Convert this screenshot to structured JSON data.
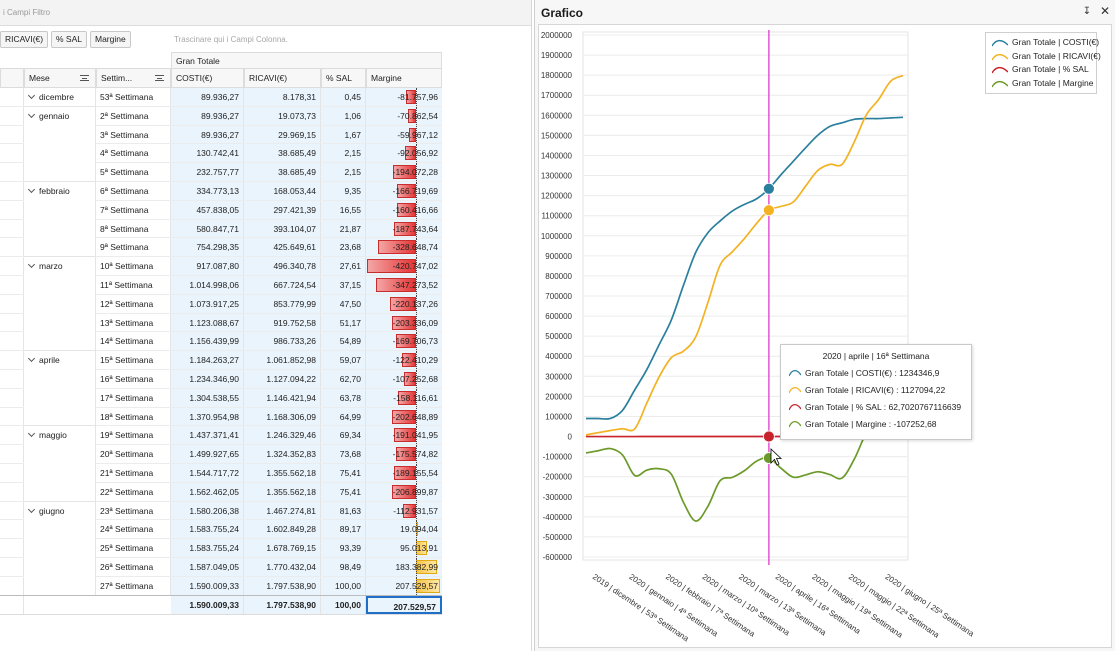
{
  "filter_area": {
    "placeholder": "i Campi Filtro"
  },
  "data_fields": [
    "RICAVI(€)",
    "% SAL",
    "Margine"
  ],
  "column_drop_text": "Trascinare qui i Campi Colonna.",
  "grand_total_header": "Gran Totale",
  "row_headers": {
    "mese": "Mese",
    "settimana": "Settim..."
  },
  "column_headers": [
    "COSTI(€)",
    "RICAVI(€)",
    "% SAL",
    "Margine"
  ],
  "months": [
    {
      "name": "dicembre",
      "rows": 1
    },
    {
      "name": "gennaio",
      "rows": 4
    },
    {
      "name": "febbraio",
      "rows": 4
    },
    {
      "name": "marzo",
      "rows": 5
    },
    {
      "name": "aprile",
      "rows": 4
    },
    {
      "name": "maggio",
      "rows": 4
    },
    {
      "name": "giugno",
      "rows": 5
    }
  ],
  "rows": [
    {
      "week": "53ª Settimana",
      "costi": "89.936,27",
      "ricavi": "8.178,31",
      "sal": "0,45",
      "margine": "-81.757,96",
      "m": -81757.96
    },
    {
      "week": "2ª Settimana",
      "costi": "89.936,27",
      "ricavi": "19.073,73",
      "sal": "1,06",
      "margine": "-70.862,54",
      "m": -70862.54
    },
    {
      "week": "3ª Settimana",
      "costi": "89.936,27",
      "ricavi": "29.969,15",
      "sal": "1,67",
      "margine": "-59.967,12",
      "m": -59967.12
    },
    {
      "week": "4ª Settimana",
      "costi": "130.742,41",
      "ricavi": "38.685,49",
      "sal": "2,15",
      "margine": "-92.056,92",
      "m": -92056.92
    },
    {
      "week": "5ª Settimana",
      "costi": "232.757,77",
      "ricavi": "38.685,49",
      "sal": "2,15",
      "margine": "-194.072,28",
      "m": -194072.28
    },
    {
      "week": "6ª Settimana",
      "costi": "334.773,13",
      "ricavi": "168.053,44",
      "sal": "9,35",
      "margine": "-166.719,69",
      "m": -166719.69
    },
    {
      "week": "7ª Settimana",
      "costi": "457.838,05",
      "ricavi": "297.421,39",
      "sal": "16,55",
      "margine": "-160.416,66",
      "m": -160416.66
    },
    {
      "week": "8ª Settimana",
      "costi": "580.847,71",
      "ricavi": "393.104,07",
      "sal": "21,87",
      "margine": "-187.743,64",
      "m": -187743.64
    },
    {
      "week": "9ª Settimana",
      "costi": "754.298,35",
      "ricavi": "425.649,61",
      "sal": "23,68",
      "margine": "-328.648,74",
      "m": -328648.74
    },
    {
      "week": "10ª Settimana",
      "costi": "917.087,80",
      "ricavi": "496.340,78",
      "sal": "27,61",
      "margine": "-420.747,02",
      "m": -420747.02
    },
    {
      "week": "11ª Settimana",
      "costi": "1.014.998,06",
      "ricavi": "667.724,54",
      "sal": "37,15",
      "margine": "-347.273,52",
      "m": -347273.52
    },
    {
      "week": "12ª Settimana",
      "costi": "1.073.917,25",
      "ricavi": "853.779,99",
      "sal": "47,50",
      "margine": "-220.137,26",
      "m": -220137.26
    },
    {
      "week": "13ª Settimana",
      "costi": "1.123.088,67",
      "ricavi": "919.752,58",
      "sal": "51,17",
      "margine": "-203.336,09",
      "m": -203336.09
    },
    {
      "week": "14ª Settimana",
      "costi": "1.156.439,99",
      "ricavi": "986.733,26",
      "sal": "54,89",
      "margine": "-169.706,73",
      "m": -169706.73
    },
    {
      "week": "15ª Settimana",
      "costi": "1.184.263,27",
      "ricavi": "1.061.852,98",
      "sal": "59,07",
      "margine": "-122.410,29",
      "m": -122410.29
    },
    {
      "week": "16ª Settimana",
      "costi": "1.234.346,90",
      "ricavi": "1.127.094,22",
      "sal": "62,70",
      "margine": "-107.252,68",
      "m": -107252.68
    },
    {
      "week": "17ª Settimana",
      "costi": "1.304.538,55",
      "ricavi": "1.146.421,94",
      "sal": "63,78",
      "margine": "-158.116,61",
      "m": -158116.61
    },
    {
      "week": "18ª Settimana",
      "costi": "1.370.954,98",
      "ricavi": "1.168.306,09",
      "sal": "64,99",
      "margine": "-202.648,89",
      "m": -202648.89
    },
    {
      "week": "19ª Settimana",
      "costi": "1.437.371,41",
      "ricavi": "1.246.329,46",
      "sal": "69,34",
      "margine": "-191.041,95",
      "m": -191041.95
    },
    {
      "week": "20ª Settimana",
      "costi": "1.499.927,65",
      "ricavi": "1.324.352,83",
      "sal": "73,68",
      "margine": "-175.574,82",
      "m": -175574.82
    },
    {
      "week": "21ª Settimana",
      "costi": "1.544.717,72",
      "ricavi": "1.355.562,18",
      "sal": "75,41",
      "margine": "-189.155,54",
      "m": -189155.54
    },
    {
      "week": "22ª Settimana",
      "costi": "1.562.462,05",
      "ricavi": "1.355.562,18",
      "sal": "75,41",
      "margine": "-206.899,87",
      "m": -206899.87
    },
    {
      "week": "23ª Settimana",
      "costi": "1.580.206,38",
      "ricavi": "1.467.274,81",
      "sal": "81,63",
      "margine": "-112.931,57",
      "m": -112931.57
    },
    {
      "week": "24ª Settimana",
      "costi": "1.583.755,24",
      "ricavi": "1.602.849,28",
      "sal": "89,17",
      "margine": "19.094,04",
      "m": 19094.04
    },
    {
      "week": "25ª Settimana",
      "costi": "1.583.755,24",
      "ricavi": "1.678.769,15",
      "sal": "93,39",
      "margine": "95.013,91",
      "m": 95013.91
    },
    {
      "week": "26ª Settimana",
      "costi": "1.587.049,05",
      "ricavi": "1.770.432,04",
      "sal": "98,49",
      "margine": "183.382,99",
      "m": 183382.99
    },
    {
      "week": "27ª Settimana",
      "costi": "1.590.009,33",
      "ricavi": "1.797.538,90",
      "sal": "100,00",
      "margine": "207.529,57",
      "m": 207529.57
    }
  ],
  "totals": {
    "costi": "1.590.009,33",
    "ricavi": "1.797.538,90",
    "sal": "100,00",
    "margine": "207.529,57"
  },
  "panel": {
    "title": "Grafico",
    "pin_icon": "pin-icon",
    "close_icon": "close-icon"
  },
  "chart_data": {
    "type": "line",
    "y_ticks": [
      "2000000",
      "1900000",
      "1800000",
      "1700000",
      "1600000",
      "1500000",
      "1400000",
      "1300000",
      "1200000",
      "1100000",
      "1000000",
      "900000",
      "800000",
      "700000",
      "600000",
      "500000",
      "400000",
      "300000",
      "200000",
      "100000",
      "0",
      "-100000",
      "-200000",
      "-300000",
      "-400000",
      "-500000",
      "-600000"
    ],
    "ylim": [
      -600000,
      2000000
    ],
    "x_labels": [
      "2019 | dicembre | 53ª Settimana",
      "2020 | gennaio | 4ª Settimana",
      "2020 | febbraio | 7ª Settimana",
      "2020 | marzo | 10ª Settimana",
      "2020 | marzo | 13ª Settimana",
      "2020 | aprile | 16ª Settimana",
      "2020 | maggio | 19ª Settimana",
      "2020 | maggio | 22ª Settimana",
      "2020 | giugno | 25ª Settimana"
    ],
    "x_label_index": [
      0,
      3,
      6,
      9,
      12,
      15,
      18,
      21,
      24
    ],
    "legend": [
      {
        "name": "Gran Totale | COSTI(€)",
        "color": "#2a7f9e"
      },
      {
        "name": "Gran Totale | RICAVI(€)",
        "color": "#f3b221"
      },
      {
        "name": "Gran Totale | % SAL",
        "color": "#c8232c"
      },
      {
        "name": "Gran Totale | Margine",
        "color": "#6c9a2a"
      }
    ],
    "series": [
      {
        "name": "Gran Totale | COSTI(€)",
        "values": [
          89936.27,
          89936.27,
          89936.27,
          130742.41,
          232757.77,
          334773.13,
          457838.05,
          580847.71,
          754298.35,
          917087.8,
          1014998.06,
          1073917.25,
          1123088.67,
          1156439.99,
          1184263.27,
          1234346.9,
          1304538.55,
          1370954.98,
          1437371.41,
          1499927.65,
          1544717.72,
          1562462.05,
          1580206.38,
          1583755.24,
          1583755.24,
          1587049.05,
          1590009.33
        ]
      },
      {
        "name": "Gran Totale | RICAVI(€)",
        "values": [
          8178.31,
          19073.73,
          29969.15,
          38685.49,
          38685.49,
          168053.44,
          297421.39,
          393104.07,
          425649.61,
          496340.78,
          667724.54,
          853779.99,
          919752.58,
          986733.26,
          1061852.98,
          1127094.22,
          1146421.94,
          1168306.09,
          1246329.46,
          1324352.83,
          1355562.18,
          1355562.18,
          1467274.81,
          1602849.28,
          1678769.15,
          1770432.04,
          1797538.9
        ]
      },
      {
        "name": "Gran Totale | % SAL",
        "values": [
          0.45,
          1.06,
          1.67,
          2.15,
          2.15,
          9.35,
          16.55,
          21.87,
          23.68,
          27.61,
          37.15,
          47.5,
          51.17,
          54.89,
          59.07,
          62.7,
          63.78,
          64.99,
          69.34,
          73.68,
          75.41,
          75.41,
          81.63,
          89.17,
          93.39,
          98.49,
          100.0
        ]
      },
      {
        "name": "Gran Totale | Margine",
        "values": [
          -81757.96,
          -70862.54,
          -59967.12,
          -92056.92,
          -194072.28,
          -166719.69,
          -160416.66,
          -187743.64,
          -328648.74,
          -420747.02,
          -347273.52,
          -220137.26,
          -203336.09,
          -169706.73,
          -122410.29,
          -107252.68,
          -158116.61,
          -202648.89,
          -191041.95,
          -175574.82,
          -189155.54,
          -206899.87,
          -112931.57,
          19094.04,
          95013.91,
          183382.99,
          207529.57
        ]
      }
    ],
    "crosshair_index": 15
  },
  "tooltip": {
    "title": "2020 | aprile | 16ª Settimana",
    "lines": [
      "Gran Totale | COSTI(€) : 1234346,9",
      "Gran Totale | RICAVI(€) : 1127094,22",
      "Gran Totale | % SAL  : 62,7020767116639",
      "Gran Totale | Margine : -107252,68"
    ]
  }
}
